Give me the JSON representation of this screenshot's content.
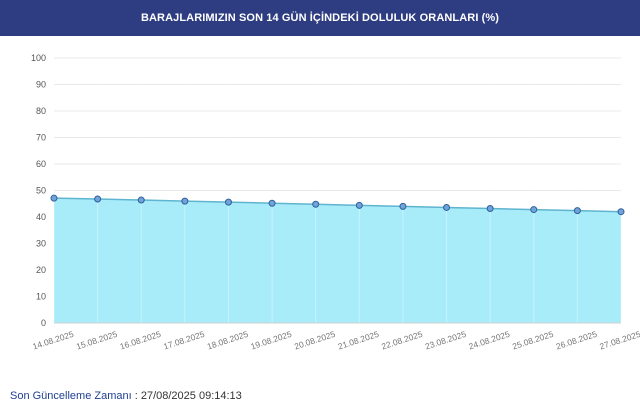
{
  "header": {
    "title": "BARAJLARIMIZIN SON 14 GÜN İÇİNDEKİ DOLULUK ORANLARI (%)"
  },
  "footer": {
    "label": "Son Güncelleme Zamanı",
    "separator": " : ",
    "value": "27/08/2025 09:14:13"
  },
  "colors": {
    "header_bg": "#2e3d82",
    "area_fill": "#a8ecfa",
    "line": "#5fb4cf",
    "point_fill": "#6fa3d9",
    "point_stroke": "#2f5f9a",
    "grid": "#e8e8e8"
  },
  "chart_data": {
    "type": "area",
    "title": "BARAJLARIMIZIN SON 14 GÜN İÇİNDEKİ DOLULUK ORANLARI (%)",
    "x": [
      "14.08.2025",
      "15.08.2025",
      "16.08.2025",
      "17.08.2025",
      "18.08.2025",
      "19.08.2025",
      "20.08.2025",
      "21.08.2025",
      "22.08.2025",
      "23.08.2025",
      "24.08.2025",
      "25.08.2025",
      "26.08.2025",
      "27.08.2025"
    ],
    "series": [
      {
        "values": [
          47.1,
          46.8,
          46.4,
          46.0,
          45.6,
          45.2,
          44.8,
          44.4,
          44.0,
          43.6,
          43.2,
          42.8,
          42.4,
          42.0
        ]
      }
    ],
    "ylim": [
      0,
      100
    ],
    "yticks": [
      0,
      10,
      20,
      30,
      40,
      50,
      60,
      70,
      80,
      90,
      100
    ],
    "grid": true,
    "xlabel": "",
    "ylabel": ""
  }
}
